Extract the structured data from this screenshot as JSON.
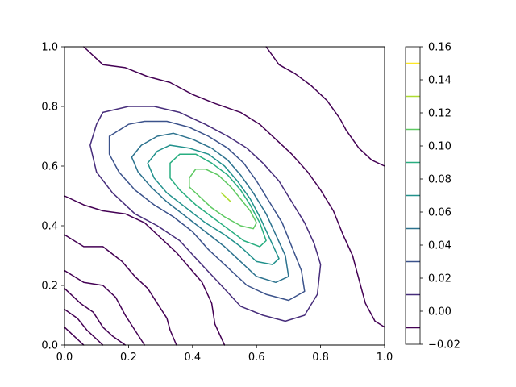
{
  "chart_data": {
    "type": "contour",
    "title": "",
    "xlabel": "",
    "ylabel": "",
    "xlim": [
      0.0,
      1.0
    ],
    "ylim": [
      0.0,
      1.0
    ],
    "xticks": [
      "0.0",
      "0.2",
      "0.4",
      "0.6",
      "0.8",
      "1.0"
    ],
    "yticks": [
      "0.0",
      "0.2",
      "0.4",
      "0.6",
      "0.8",
      "1.0"
    ],
    "grid": false,
    "colorbar": {
      "levels": [
        -0.02,
        0.0,
        0.02,
        0.04,
        0.06,
        0.08,
        0.1,
        0.12,
        0.14,
        0.16
      ],
      "tick_labels": [
        "−0.02",
        "0.00",
        "0.02",
        "0.04",
        "0.06",
        "0.08",
        "0.10",
        "0.12",
        "0.14",
        "0.16"
      ],
      "colors": [
        "#440154",
        "#472d7b",
        "#3b528b",
        "#2c728e",
        "#21918c",
        "#28ae80",
        "#5ec962",
        "#addc30",
        "#fde725"
      ]
    },
    "series": [
      {
        "level": 0.0,
        "segments": [
          [
            [
              0.06,
              1.0
            ],
            [
              0.12,
              0.94
            ],
            [
              0.19,
              0.93
            ],
            [
              0.26,
              0.9
            ],
            [
              0.33,
              0.88
            ],
            [
              0.4,
              0.84
            ],
            [
              0.47,
              0.81
            ],
            [
              0.55,
              0.78
            ],
            [
              0.61,
              0.74
            ],
            [
              0.66,
              0.69
            ],
            [
              0.71,
              0.64
            ],
            [
              0.76,
              0.58
            ],
            [
              0.8,
              0.52
            ],
            [
              0.84,
              0.45
            ],
            [
              0.87,
              0.37
            ],
            [
              0.9,
              0.3
            ],
            [
              0.92,
              0.22
            ],
            [
              0.94,
              0.14
            ],
            [
              0.97,
              0.08
            ],
            [
              1.0,
              0.06
            ]
          ],
          [
            [
              0.0,
              0.5
            ],
            [
              0.06,
              0.47
            ],
            [
              0.12,
              0.45
            ],
            [
              0.19,
              0.44
            ],
            [
              0.25,
              0.41
            ],
            [
              0.3,
              0.36
            ],
            [
              0.35,
              0.31
            ],
            [
              0.39,
              0.26
            ],
            [
              0.43,
              0.21
            ],
            [
              0.46,
              0.14
            ],
            [
              0.47,
              0.07
            ],
            [
              0.5,
              0.0
            ]
          ],
          [
            [
              0.0,
              0.37
            ],
            [
              0.06,
              0.33
            ],
            [
              0.12,
              0.33
            ],
            [
              0.18,
              0.28
            ],
            [
              0.22,
              0.23
            ],
            [
              0.26,
              0.19
            ],
            [
              0.29,
              0.14
            ],
            [
              0.32,
              0.09
            ],
            [
              0.33,
              0.05
            ],
            [
              0.35,
              0.0
            ]
          ],
          [
            [
              0.0,
              0.25
            ],
            [
              0.06,
              0.21
            ],
            [
              0.12,
              0.2
            ],
            [
              0.16,
              0.16
            ],
            [
              0.19,
              0.1
            ],
            [
              0.22,
              0.05
            ],
            [
              0.25,
              0.0
            ]
          ],
          [
            [
              0.0,
              0.19
            ],
            [
              0.05,
              0.14
            ],
            [
              0.09,
              0.11
            ],
            [
              0.12,
              0.06
            ],
            [
              0.15,
              0.03
            ],
            [
              0.19,
              0.0
            ]
          ],
          [
            [
              0.0,
              0.12
            ],
            [
              0.04,
              0.09
            ],
            [
              0.07,
              0.05
            ],
            [
              0.1,
              0.02
            ],
            [
              0.12,
              0.0
            ]
          ],
          [
            [
              0.0,
              0.06
            ],
            [
              0.03,
              0.03
            ],
            [
              0.06,
              0.0
            ]
          ],
          [
            [
              0.63,
              1.0
            ],
            [
              0.67,
              0.94
            ],
            [
              0.72,
              0.91
            ],
            [
              0.77,
              0.87
            ],
            [
              0.82,
              0.82
            ],
            [
              0.86,
              0.76
            ],
            [
              0.88,
              0.72
            ],
            [
              0.92,
              0.66
            ],
            [
              0.96,
              0.62
            ],
            [
              1.0,
              0.6
            ]
          ]
        ]
      },
      {
        "level": 0.02,
        "segments": [
          [
            [
              0.12,
              0.78
            ],
            [
              0.2,
              0.8
            ],
            [
              0.28,
              0.8
            ],
            [
              0.36,
              0.78
            ],
            [
              0.44,
              0.74
            ],
            [
              0.51,
              0.7
            ],
            [
              0.57,
              0.66
            ],
            [
              0.62,
              0.61
            ],
            [
              0.67,
              0.55
            ],
            [
              0.71,
              0.48
            ],
            [
              0.75,
              0.41
            ],
            [
              0.78,
              0.34
            ],
            [
              0.8,
              0.27
            ],
            [
              0.79,
              0.17
            ],
            [
              0.75,
              0.1
            ],
            [
              0.69,
              0.08
            ],
            [
              0.62,
              0.1
            ],
            [
              0.55,
              0.13
            ],
            [
              0.49,
              0.2
            ],
            [
              0.42,
              0.28
            ],
            [
              0.36,
              0.35
            ],
            [
              0.29,
              0.4
            ],
            [
              0.22,
              0.44
            ],
            [
              0.15,
              0.51
            ],
            [
              0.1,
              0.58
            ],
            [
              0.08,
              0.67
            ],
            [
              0.1,
              0.74
            ],
            [
              0.12,
              0.78
            ]
          ]
        ]
      },
      {
        "level": 0.04,
        "segments": [
          [
            [
              0.14,
              0.7
            ],
            [
              0.2,
              0.74
            ],
            [
              0.25,
              0.75
            ],
            [
              0.32,
              0.75
            ],
            [
              0.39,
              0.73
            ],
            [
              0.45,
              0.7
            ],
            [
              0.51,
              0.66
            ],
            [
              0.56,
              0.61
            ],
            [
              0.6,
              0.55
            ],
            [
              0.64,
              0.48
            ],
            [
              0.68,
              0.41
            ],
            [
              0.71,
              0.33
            ],
            [
              0.74,
              0.25
            ],
            [
              0.75,
              0.18
            ],
            [
              0.7,
              0.15
            ],
            [
              0.63,
              0.17
            ],
            [
              0.57,
              0.2
            ],
            [
              0.51,
              0.26
            ],
            [
              0.45,
              0.32
            ],
            [
              0.4,
              0.38
            ],
            [
              0.34,
              0.43
            ],
            [
              0.28,
              0.47
            ],
            [
              0.22,
              0.52
            ],
            [
              0.17,
              0.58
            ],
            [
              0.14,
              0.64
            ],
            [
              0.14,
              0.7
            ]
          ]
        ]
      },
      {
        "level": 0.06,
        "segments": [
          [
            [
              0.21,
              0.63
            ],
            [
              0.24,
              0.67
            ],
            [
              0.29,
              0.7
            ],
            [
              0.34,
              0.71
            ],
            [
              0.4,
              0.69
            ],
            [
              0.46,
              0.66
            ],
            [
              0.51,
              0.62
            ],
            [
              0.55,
              0.57
            ],
            [
              0.59,
              0.51
            ],
            [
              0.63,
              0.44
            ],
            [
              0.66,
              0.37
            ],
            [
              0.69,
              0.3
            ],
            [
              0.7,
              0.23
            ],
            [
              0.66,
              0.21
            ],
            [
              0.6,
              0.23
            ],
            [
              0.55,
              0.28
            ],
            [
              0.5,
              0.33
            ],
            [
              0.44,
              0.38
            ],
            [
              0.38,
              0.43
            ],
            [
              0.32,
              0.48
            ],
            [
              0.27,
              0.53
            ],
            [
              0.23,
              0.58
            ],
            [
              0.21,
              0.63
            ]
          ]
        ]
      },
      {
        "level": 0.08,
        "segments": [
          [
            [
              0.26,
              0.61
            ],
            [
              0.29,
              0.65
            ],
            [
              0.33,
              0.67
            ],
            [
              0.39,
              0.66
            ],
            [
              0.45,
              0.64
            ],
            [
              0.5,
              0.6
            ],
            [
              0.54,
              0.55
            ],
            [
              0.58,
              0.49
            ],
            [
              0.61,
              0.43
            ],
            [
              0.64,
              0.36
            ],
            [
              0.67,
              0.29
            ],
            [
              0.65,
              0.27
            ],
            [
              0.6,
              0.28
            ],
            [
              0.55,
              0.33
            ],
            [
              0.5,
              0.37
            ],
            [
              0.44,
              0.41
            ],
            [
              0.38,
              0.46
            ],
            [
              0.32,
              0.51
            ],
            [
              0.28,
              0.56
            ],
            [
              0.26,
              0.61
            ]
          ]
        ]
      },
      {
        "level": 0.1,
        "segments": [
          [
            [
              0.33,
              0.61
            ],
            [
              0.36,
              0.64
            ],
            [
              0.41,
              0.64
            ],
            [
              0.46,
              0.61
            ],
            [
              0.51,
              0.57
            ],
            [
              0.55,
              0.52
            ],
            [
              0.58,
              0.47
            ],
            [
              0.61,
              0.41
            ],
            [
              0.63,
              0.35
            ],
            [
              0.61,
              0.33
            ],
            [
              0.56,
              0.35
            ],
            [
              0.51,
              0.39
            ],
            [
              0.46,
              0.43
            ],
            [
              0.41,
              0.47
            ],
            [
              0.36,
              0.52
            ],
            [
              0.33,
              0.56
            ],
            [
              0.33,
              0.61
            ]
          ]
        ]
      },
      {
        "level": 0.12,
        "segments": [
          [
            [
              0.39,
              0.56
            ],
            [
              0.41,
              0.59
            ],
            [
              0.44,
              0.59
            ],
            [
              0.48,
              0.57
            ],
            [
              0.52,
              0.53
            ],
            [
              0.55,
              0.49
            ],
            [
              0.58,
              0.45
            ],
            [
              0.6,
              0.41
            ],
            [
              0.59,
              0.39
            ],
            [
              0.55,
              0.4
            ],
            [
              0.5,
              0.43
            ],
            [
              0.46,
              0.46
            ],
            [
              0.42,
              0.5
            ],
            [
              0.39,
              0.53
            ],
            [
              0.39,
              0.56
            ]
          ]
        ]
      },
      {
        "level": 0.14,
        "segments": [
          [
            [
              0.49,
              0.51
            ],
            [
              0.5,
              0.5
            ],
            [
              0.52,
              0.48
            ],
            [
              0.51,
              0.49
            ],
            [
              0.49,
              0.51
            ]
          ]
        ]
      }
    ]
  }
}
